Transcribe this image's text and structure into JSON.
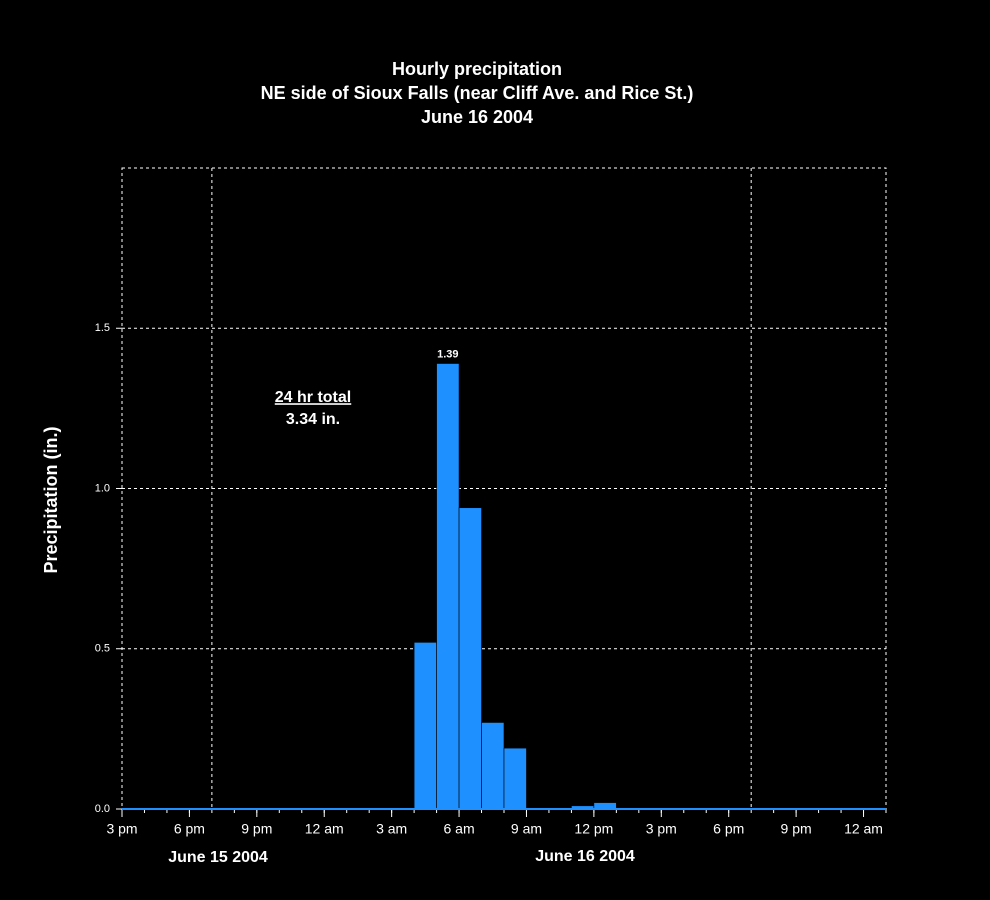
{
  "chart_data": {
    "type": "histogram",
    "title": [
      "Hourly precipitation",
      "NE side of Sioux Falls (near Cliff Ave. and Rice St.)",
      "June 16 2004"
    ],
    "ylabel": "Precipitation (in.)",
    "bins": [
      "2004-06-15T15:00",
      "2004-06-15T16:00",
      "2004-06-15T17:00",
      "2004-06-15T18:00",
      "2004-06-15T19:00",
      "2004-06-15T20:00",
      "2004-06-15T21:00",
      "2004-06-15T22:00",
      "2004-06-15T23:00",
      "2004-06-16T00:00",
      "2004-06-16T01:00",
      "2004-06-16T02:00",
      "2004-06-16T03:00",
      "2004-06-16T04:00",
      "2004-06-16T05:00",
      "2004-06-16T06:00",
      "2004-06-16T07:00",
      "2004-06-16T08:00",
      "2004-06-16T09:00",
      "2004-06-16T10:00",
      "2004-06-16T11:00",
      "2004-06-16T12:00",
      "2004-06-16T13:00",
      "2004-06-16T14:00",
      "2004-06-16T15:00",
      "2004-06-16T16:00",
      "2004-06-16T17:00",
      "2004-06-16T18:00",
      "2004-06-16T19:00",
      "2004-06-16T20:00",
      "2004-06-16T21:00",
      "2004-06-16T22:00",
      "2004-06-16T23:00",
      "2004-06-17T00:00",
      "2004-06-17T01:00"
    ],
    "values": [
      0,
      0,
      0,
      0,
      0,
      0,
      0,
      0,
      0,
      0,
      0,
      0,
      0,
      0.52,
      1.39,
      0.94,
      0.27,
      0.19,
      0,
      0,
      0.01,
      0.02,
      0,
      0,
      0,
      0,
      0,
      0,
      0,
      0,
      0,
      0,
      0,
      0
    ],
    "value_labels": [
      null,
      null,
      null,
      null,
      null,
      null,
      null,
      null,
      null,
      null,
      null,
      null,
      null,
      null,
      "1.39",
      null,
      null,
      null,
      null,
      null,
      null,
      null,
      null,
      null,
      null,
      null,
      null,
      null,
      null,
      null,
      null,
      null,
      null,
      null
    ],
    "color": "#1e90ff",
    "xlim": [
      "2004-06-15T15:00",
      "2004-06-17T01:00"
    ],
    "xticks": [
      {
        "value": "2004-06-15T15:00",
        "label": "3 pm"
      },
      {
        "value": "2004-06-15T18:00",
        "label": "6 pm"
      },
      {
        "value": "2004-06-15T21:00",
        "label": "9 pm"
      },
      {
        "value": "2004-06-16T00:00",
        "label": "12 am"
      },
      {
        "value": "2004-06-16T03:00",
        "label": "3 am"
      },
      {
        "value": "2004-06-16T06:00",
        "label": "6 am"
      },
      {
        "value": "2004-06-16T09:00",
        "label": "9 am"
      },
      {
        "value": "2004-06-16T12:00",
        "label": "12 pm"
      },
      {
        "value": "2004-06-16T15:00",
        "label": "3 pm"
      },
      {
        "value": "2004-06-16T18:00",
        "label": "6 pm"
      },
      {
        "value": "2004-06-16T21:00",
        "label": "9 pm"
      },
      {
        "value": "2004-06-17T00:00",
        "label": "12 am"
      }
    ],
    "xgrid": [
      "2004-06-15T19:00",
      "2004-06-16T19:00"
    ],
    "date_labels": [
      "June 15 2004",
      "June 16 2004"
    ],
    "ylim": [
      0,
      2.0
    ],
    "yticks": [
      {
        "value": 0,
        "label": "0.0"
      },
      0.5,
      {
        "value": 1,
        "label": "1.0"
      },
      1.5
    ],
    "grid": true,
    "annotation": {
      "heading": "24 hr total",
      "text": "3.34 in."
    }
  }
}
